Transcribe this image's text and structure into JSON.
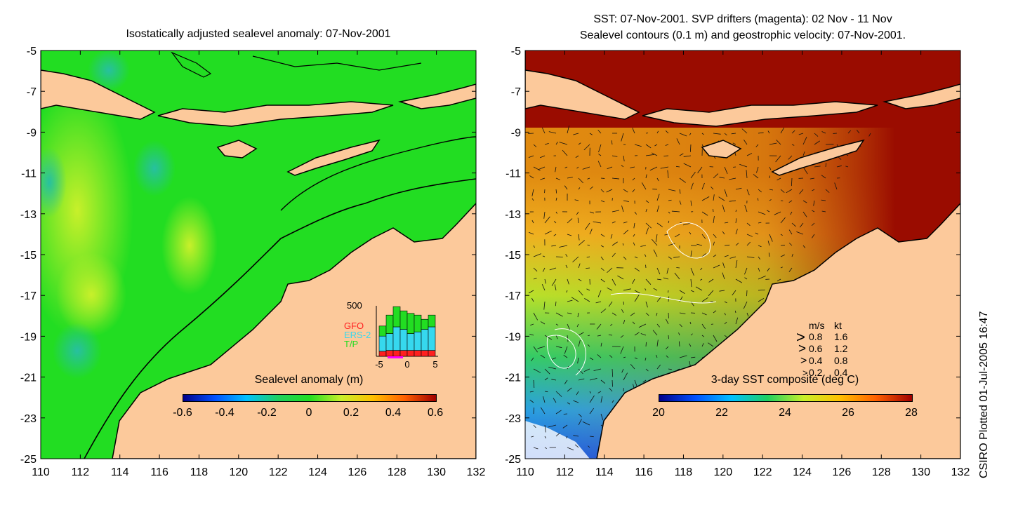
{
  "left_panel": {
    "title": "Isostatically adjusted sealevel anomaly: 07-Nov-2001",
    "colorbar": {
      "label": "Sealevel anomaly (m)",
      "ticks": [
        "-0.6",
        "-0.4",
        "-0.2",
        "0",
        "0.2",
        "0.4",
        "0.6"
      ]
    },
    "inset": {
      "ymax_label": "500",
      "legend": [
        "GFO",
        "ERS-2",
        "T/P"
      ],
      "legend_colors": [
        "#ff1f1f",
        "#36d8ee",
        "#22dd22"
      ],
      "xticks": [
        "-5",
        "0",
        "5"
      ],
      "bars": [
        {
          "gfo": 0.12,
          "ers": 0.18,
          "tp": 0.06
        },
        {
          "gfo": 0.22,
          "ers": 0.2,
          "tp": 0.07
        },
        {
          "gfo": 0.24,
          "ers": 0.28,
          "tp": 0.07
        },
        {
          "gfo": 0.22,
          "ers": 0.25,
          "tp": 0.07
        },
        {
          "gfo": 0.24,
          "ers": 0.2,
          "tp": 0.07
        },
        {
          "gfo": 0.2,
          "ers": 0.22,
          "tp": 0.07
        },
        {
          "gfo": 0.12,
          "ers": 0.25,
          "tp": 0.07
        },
        {
          "gfo": 0.14,
          "ers": 0.28,
          "tp": 0.07
        }
      ]
    }
  },
  "right_panel": {
    "title_line1": "SST: 07-Nov-2001. SVP drifters (magenta): 02 Nov - 11 Nov",
    "title_line2": "Sealevel contours (0.1 m) and geostrophic velocity: 07-Nov-2001.",
    "colorbar": {
      "label": "3-day SST composite (deg C)",
      "ticks": [
        "20",
        "22",
        "24",
        "26",
        "28"
      ]
    },
    "velocity_legend": {
      "header_ms": "m/s",
      "header_kt": "kt",
      "rows": [
        {
          "ms": "0.8",
          "kt": "1.6"
        },
        {
          "ms": "0.6",
          "kt": "1.2"
        },
        {
          "ms": "0.4",
          "kt": "0.8"
        },
        {
          "ms": "0.2",
          "kt": "0.4"
        }
      ]
    }
  },
  "axes": {
    "lat_ticks": [
      "-5",
      "-7",
      "-9",
      "-11",
      "-13",
      "-15",
      "-17",
      "-19",
      "-21",
      "-23",
      "-25"
    ],
    "lon_ticks": [
      "110",
      "112",
      "114",
      "116",
      "118",
      "120",
      "122",
      "124",
      "126",
      "128",
      "130",
      "132"
    ]
  },
  "credit": "CSIRO Plotted 01-Jul-2005 16:47",
  "colors": {
    "land": "#fcc99b",
    "ocean_sla": "#22dd22",
    "sst_warm": "#9a0c00"
  }
}
